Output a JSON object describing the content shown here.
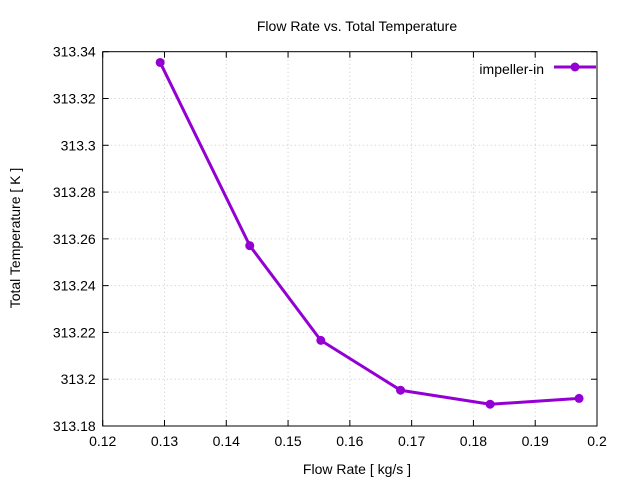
{
  "chart_data": {
    "type": "line",
    "title": "Flow Rate vs. Total Temperature",
    "xlabel": "Flow Rate [ kg/s ]",
    "ylabel": "Total Temperature [ K ]",
    "xlim": [
      0.12,
      0.2
    ],
    "ylim": [
      313.18,
      313.34
    ],
    "xticks": [
      "0.12",
      "0.13",
      "0.14",
      "0.15",
      "0.16",
      "0.17",
      "0.18",
      "0.19",
      "0.2"
    ],
    "yticks": [
      "313.18",
      "313.2",
      "313.22",
      "313.24",
      "313.26",
      "313.28",
      "313.3",
      "313.32",
      "313.34"
    ],
    "grid": true,
    "legend_position": "top-right",
    "series": [
      {
        "name": "impeller-in",
        "color": "#9400d3",
        "x": [
          0.1293,
          0.1438,
          0.1553,
          0.1682,
          0.1827,
          0.1971
        ],
        "y": [
          313.3354,
          313.2571,
          313.2166,
          313.1953,
          313.1893,
          313.1918
        ]
      }
    ]
  }
}
